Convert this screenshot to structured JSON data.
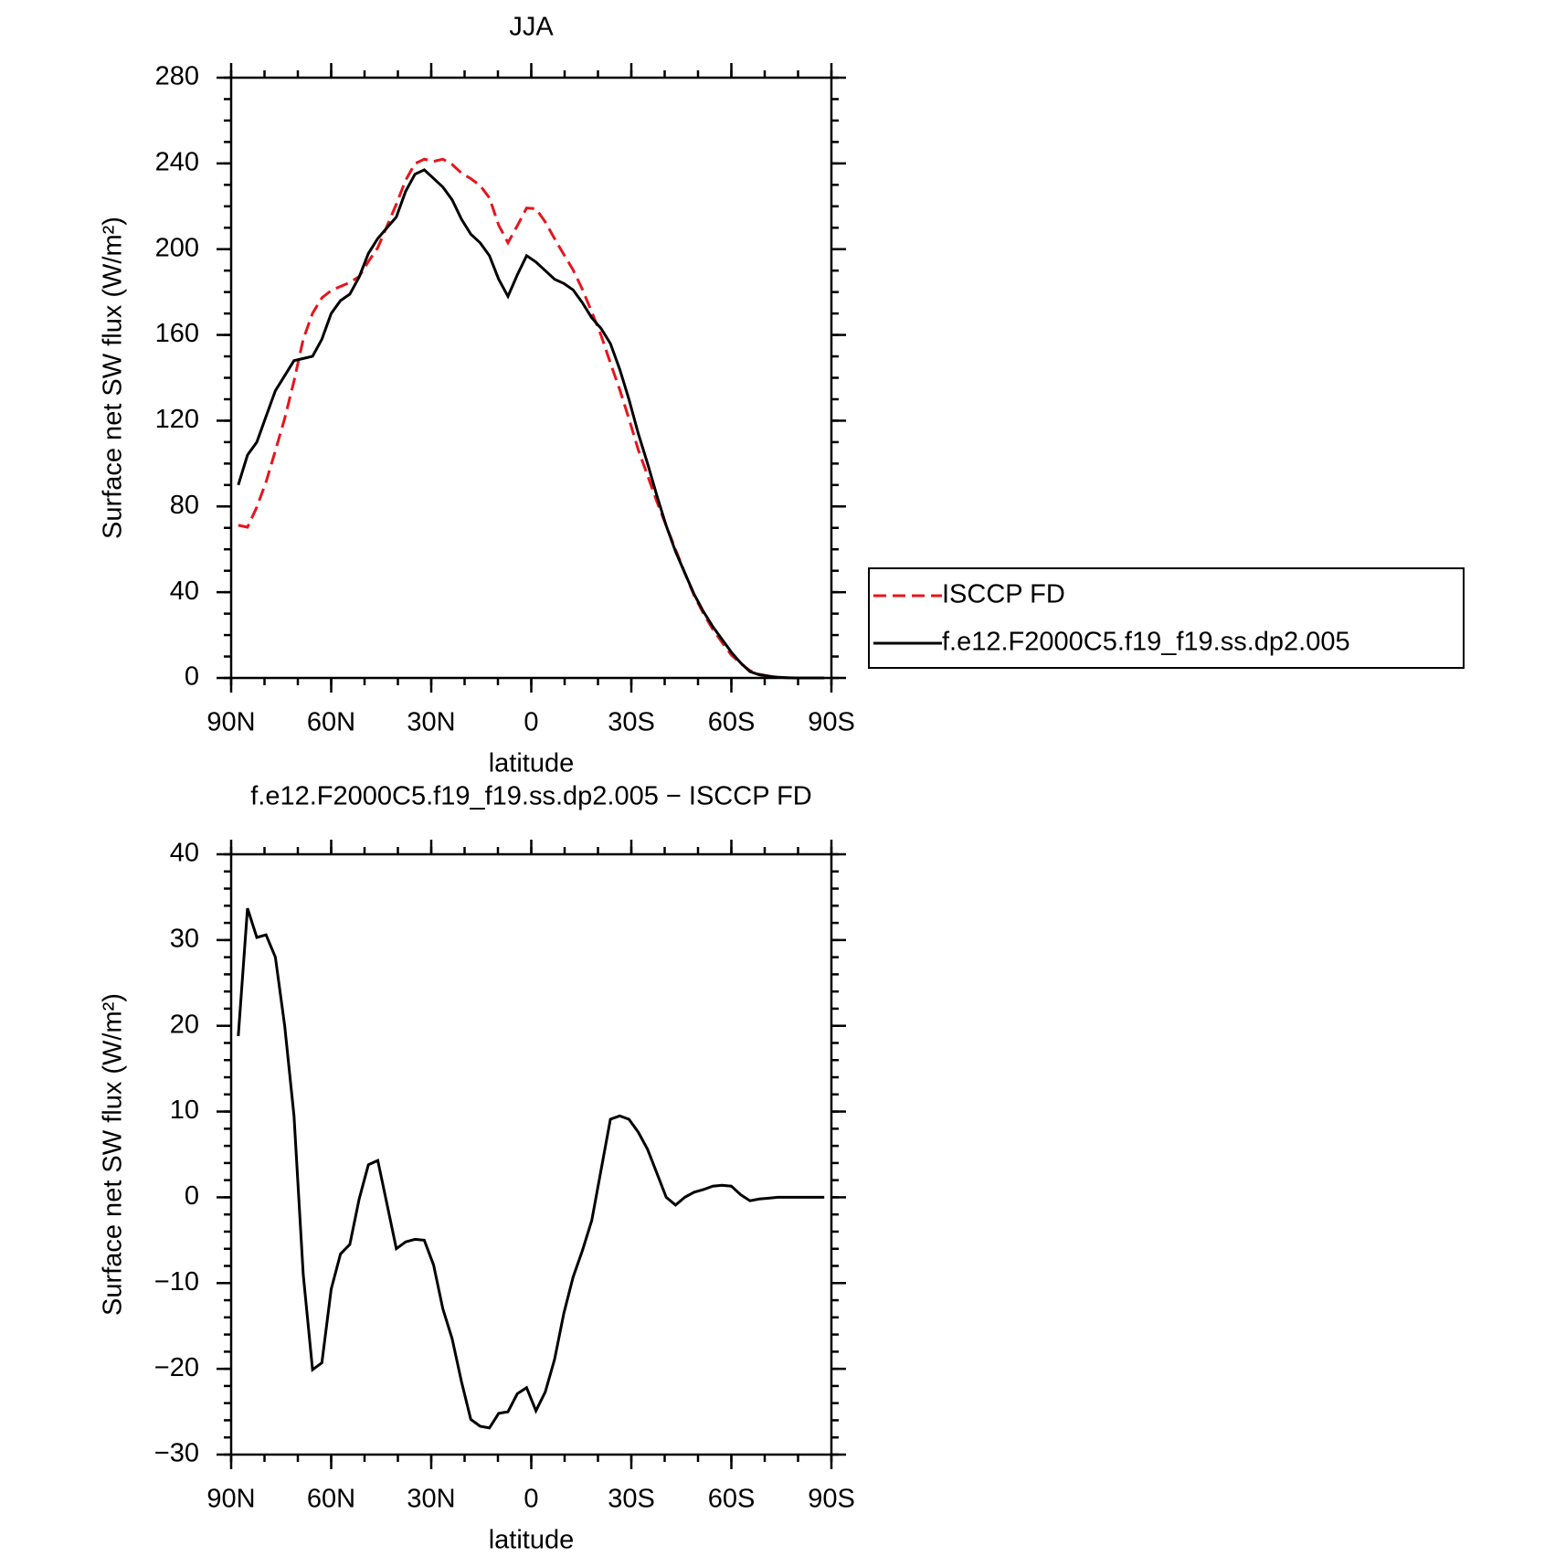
{
  "chart_data": [
    {
      "type": "line",
      "title": "JJA",
      "xlabel": "latitude",
      "ylabel": "Surface net SW flux (W/m²)",
      "xlim": [
        90,
        -90
      ],
      "xticks": [
        {
          "value": 90,
          "label": "90N"
        },
        {
          "value": 60,
          "label": "60N"
        },
        {
          "value": 30,
          "label": "30N"
        },
        0,
        {
          "value": -30,
          "label": "30S"
        },
        {
          "value": -60,
          "label": "60S"
        },
        {
          "value": -90,
          "label": "90S"
        }
      ],
      "ylim": [
        0,
        280
      ],
      "yticks": [
        0,
        40,
        80,
        120,
        160,
        200,
        240,
        280
      ],
      "x": [
        87.86,
        85.1,
        82.31,
        79.53,
        76.74,
        73.95,
        71.16,
        68.37,
        65.58,
        62.79,
        60.0,
        57.21,
        54.42,
        51.63,
        48.84,
        46.04,
        43.25,
        40.46,
        37.67,
        34.88,
        32.09,
        29.3,
        26.51,
        23.72,
        20.93,
        18.14,
        15.35,
        12.56,
        9.77,
        6.98,
        4.19,
        1.4,
        -1.4,
        -4.19,
        -6.98,
        -9.77,
        -12.56,
        -15.35,
        -18.14,
        -20.93,
        -23.72,
        -26.51,
        -29.3,
        -32.09,
        -34.88,
        -37.67,
        -40.46,
        -43.25,
        -46.04,
        -48.84,
        -51.63,
        -54.42,
        -57.21,
        -60.0,
        -62.79,
        -65.58,
        -68.37,
        -71.16,
        -73.95,
        -76.74,
        -79.53,
        -82.31,
        -85.1,
        -87.86
      ],
      "series": [
        {
          "name": "ISCCP FD",
          "color": "#e8141c",
          "dash": true,
          "values": [
            71.2,
            70.3,
            79.7,
            91.4,
            106,
            121,
            138.5,
            158,
            170.1,
            177.3,
            180.7,
            182.6,
            184.5,
            187.2,
            194.2,
            200.7,
            210.8,
            221,
            232.2,
            239.9,
            242,
            240.9,
            242,
            239.5,
            235.5,
            232.9,
            229.7,
            223.9,
            211.2,
            203,
            210.9,
            219.2,
            218.9,
            212.7,
            204.9,
            197.5,
            190.3,
            181.2,
            170.7,
            159.8,
            146.9,
            134.5,
            120.9,
            106.4,
            94.4,
            82.2,
            71,
            59.9,
            49,
            38.4,
            30.1,
            22.7,
            16.6,
            10.7,
            6.7,
            3.4,
            1.7,
            0.9,
            0.3,
            0.1,
            0,
            0,
            0,
            0
          ]
        },
        {
          "name": "f.e12.F2000C5.f19_f19.ss.dp2.005",
          "color": "#000000",
          "dash": false,
          "values": [
            90,
            104,
            110,
            122,
            134,
            141,
            148,
            149,
            150,
            158,
            170,
            176,
            179,
            187,
            198,
            205,
            210,
            215,
            227,
            235,
            237,
            233,
            229,
            223,
            214,
            207,
            203,
            197,
            186,
            178,
            188,
            197,
            194,
            190,
            186,
            184,
            181,
            175,
            168,
            163,
            156,
            144,
            130,
            114,
            100,
            85,
            71,
            59,
            49,
            39,
            31,
            24,
            18,
            12,
            7,
            3,
            1.5,
            0.8,
            0.3,
            0.1,
            0,
            0,
            0,
            0
          ]
        }
      ],
      "legend": true
    },
    {
      "type": "line",
      "title": "f.e12.F2000C5.f19_f19.ss.dp2.005 − ISCCP FD",
      "xlabel": "latitude",
      "ylabel": "Surface net SW flux (W/m²)",
      "xlim": [
        90,
        -90
      ],
      "xticks": [
        {
          "value": 90,
          "label": "90N"
        },
        {
          "value": 60,
          "label": "60N"
        },
        {
          "value": 30,
          "label": "30N"
        },
        0,
        {
          "value": -30,
          "label": "30S"
        },
        {
          "value": -60,
          "label": "60S"
        },
        {
          "value": -90,
          "label": "90S"
        }
      ],
      "ylim": [
        -30,
        40
      ],
      "yticks": [
        {
          "value": -30,
          "label": "−30"
        },
        {
          "value": -20,
          "label": "−20"
        },
        {
          "value": -10,
          "label": "−10"
        },
        0,
        10,
        20,
        30,
        40
      ],
      "x": [
        87.86,
        85.1,
        82.31,
        79.53,
        76.74,
        73.95,
        71.16,
        68.37,
        65.58,
        62.79,
        60.0,
        57.21,
        54.42,
        51.63,
        48.84,
        46.04,
        43.25,
        40.46,
        37.67,
        34.88,
        32.09,
        29.3,
        26.51,
        23.72,
        20.93,
        18.14,
        15.35,
        12.56,
        9.77,
        6.98,
        4.19,
        1.4,
        -1.4,
        -4.19,
        -6.98,
        -9.77,
        -12.56,
        -15.35,
        -18.14,
        -20.93,
        -23.72,
        -26.51,
        -29.3,
        -32.09,
        -34.88,
        -37.67,
        -40.46,
        -43.25,
        -46.04,
        -48.84,
        -51.63,
        -54.42,
        -57.21,
        -60.0,
        -62.79,
        -65.58,
        -68.37,
        -71.16,
        -73.95,
        -76.74,
        -79.53,
        -82.31,
        -85.1,
        -87.86
      ],
      "series": [
        {
          "color": "#000000",
          "dash": false,
          "values": [
            18.8,
            33.7,
            30.3,
            30.6,
            28,
            20,
            9.5,
            -9,
            -20.1,
            -19.3,
            -10.7,
            -6.6,
            -5.5,
            -0.2,
            3.8,
            4.3,
            -0.8,
            -6,
            -5.2,
            -4.9,
            -5,
            -7.9,
            -13,
            -16.5,
            -21.5,
            -25.9,
            -26.7,
            -26.9,
            -25.2,
            -25,
            -22.9,
            -22.2,
            -24.9,
            -22.7,
            -18.9,
            -13.5,
            -9.3,
            -6.2,
            -2.7,
            3.2,
            9.1,
            9.5,
            9.1,
            7.6,
            5.6,
            2.8,
            0,
            -0.9,
            0,
            0.6,
            0.9,
            1.3,
            1.4,
            1.3,
            0.3,
            -0.4,
            -0.2,
            -0.1,
            0,
            0,
            0,
            0,
            0,
            0
          ]
        }
      ],
      "legend": false
    }
  ]
}
